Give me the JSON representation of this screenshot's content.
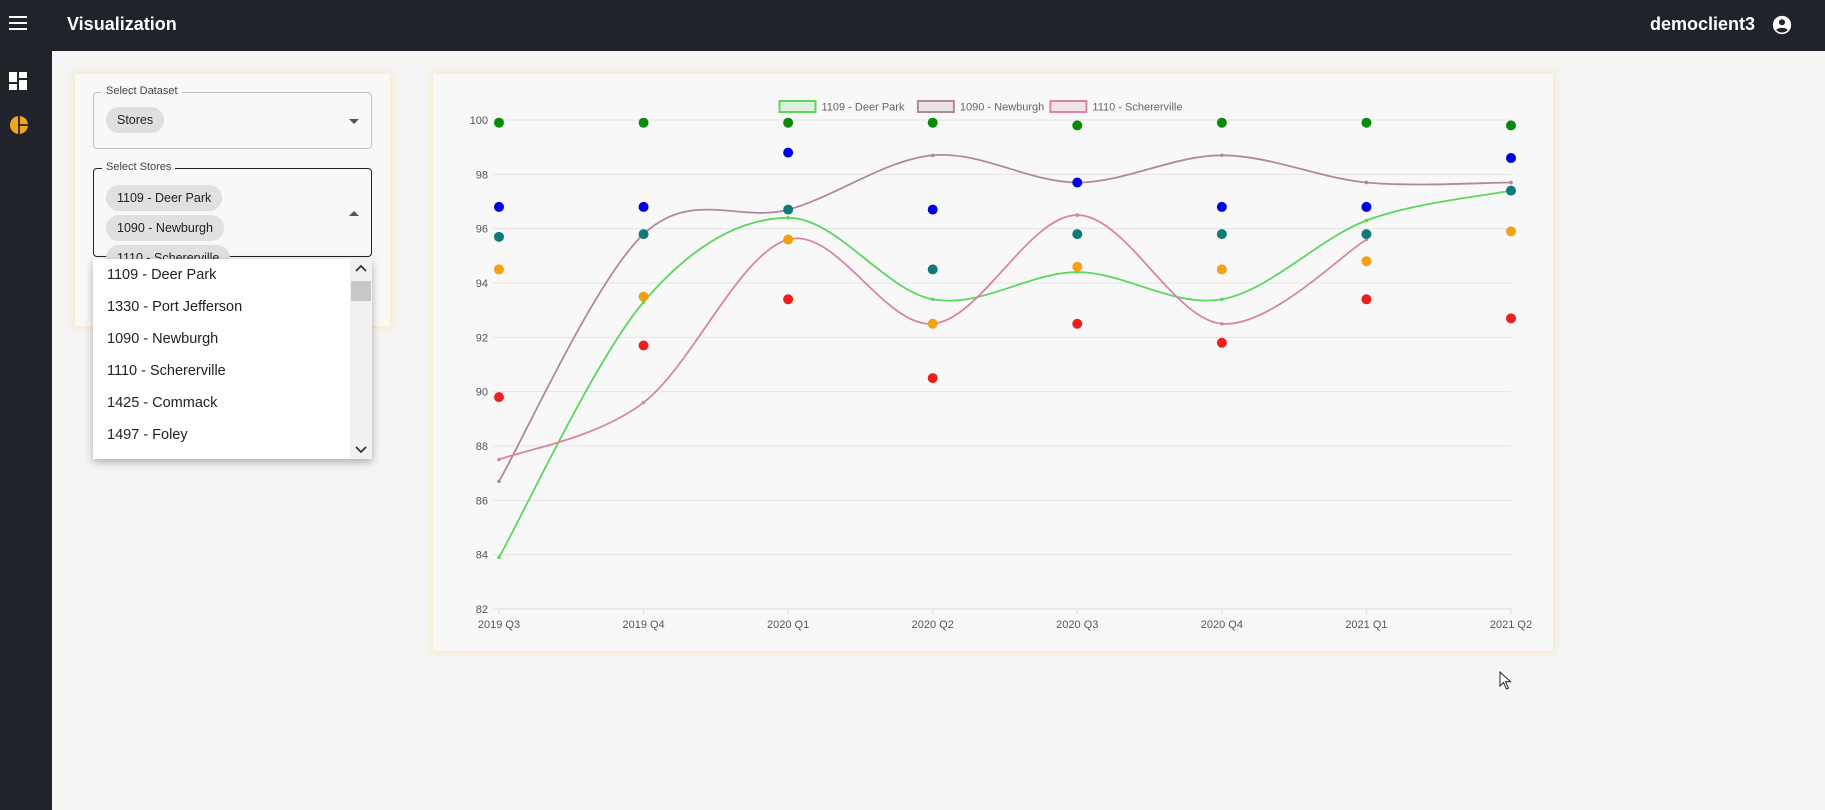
{
  "header": {
    "title": "Visualization",
    "user": "democlient3"
  },
  "nav": {
    "items": [
      "dashboard-icon",
      "pie-chart-icon"
    ],
    "active_color": "#f2a51a"
  },
  "filters": {
    "dataset": {
      "label": "Select Dataset",
      "value": "Stores"
    },
    "stores": {
      "label": "Select Stores",
      "selected": [
        "1109 - Deer Park",
        "1090 - Newburgh",
        "1110 - Schererville"
      ]
    },
    "options": [
      {
        "label": "1109 - Deer Park",
        "selected": true
      },
      {
        "label": "1330 - Port Jefferson",
        "selected": false
      },
      {
        "label": "1090 - Newburgh",
        "selected": true
      },
      {
        "label": "1110 - Schererville",
        "selected": true
      },
      {
        "label": "1425 - Commack",
        "selected": false
      },
      {
        "label": "1497 - Foley",
        "selected": false
      }
    ]
  },
  "chart_data": {
    "type": "line",
    "categories": [
      "2019 Q3",
      "2019 Q4",
      "2020 Q1",
      "2020 Q2",
      "2020 Q3",
      "2020 Q4",
      "2021 Q1",
      "2021 Q2"
    ],
    "ylim": [
      82,
      100
    ],
    "yticks": [
      82,
      84,
      86,
      88,
      90,
      92,
      94,
      96,
      98,
      100
    ],
    "legend_position": "top-center",
    "grid": true,
    "series": [
      {
        "name": "1109 - Deer Park",
        "color": "#5dd65d",
        "values": [
          83.9,
          93.3,
          96.4,
          93.4,
          94.4,
          93.4,
          96.3,
          97.4
        ]
      },
      {
        "name": "1090 - Newburgh",
        "color": "#b08a98",
        "values": [
          86.7,
          95.8,
          96.7,
          98.7,
          97.7,
          98.7,
          97.7,
          97.7
        ]
      },
      {
        "name": "1110 - Schererville",
        "color": "#d984a8",
        "values": [
          87.5,
          89.6,
          95.6,
          92.5,
          96.5,
          92.5,
          95.6,
          null
        ]
      }
    ],
    "scatter": [
      {
        "color": "#0a8a0a",
        "values": [
          99.9,
          99.9,
          99.9,
          99.9,
          99.8,
          99.9,
          99.9,
          99.8
        ]
      },
      {
        "color": "#0000e6",
        "values": [
          96.8,
          96.8,
          98.8,
          96.7,
          97.7,
          96.8,
          96.8,
          98.6
        ]
      },
      {
        "color": "#107a7a",
        "values": [
          95.7,
          95.8,
          96.7,
          94.5,
          95.8,
          95.8,
          95.8,
          97.4
        ]
      },
      {
        "color": "#f2a111",
        "values": [
          94.5,
          93.5,
          95.6,
          92.5,
          94.6,
          94.5,
          94.8,
          95.9
        ]
      },
      {
        "color": "#ee1f1f",
        "values": [
          89.8,
          91.7,
          93.4,
          90.5,
          92.5,
          91.8,
          93.4,
          92.7
        ]
      }
    ]
  }
}
